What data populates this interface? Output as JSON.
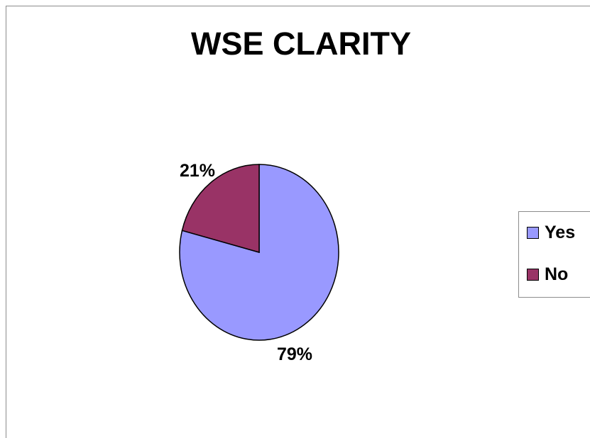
{
  "chart_data": {
    "type": "pie",
    "title": "WSE CLARITY",
    "slices": [
      {
        "name": "Yes",
        "value": 79,
        "label": "79%",
        "color": "#9999ff"
      },
      {
        "name": "No",
        "value": 21,
        "label": "21%",
        "color": "#993366"
      }
    ],
    "legend_position": "right"
  }
}
